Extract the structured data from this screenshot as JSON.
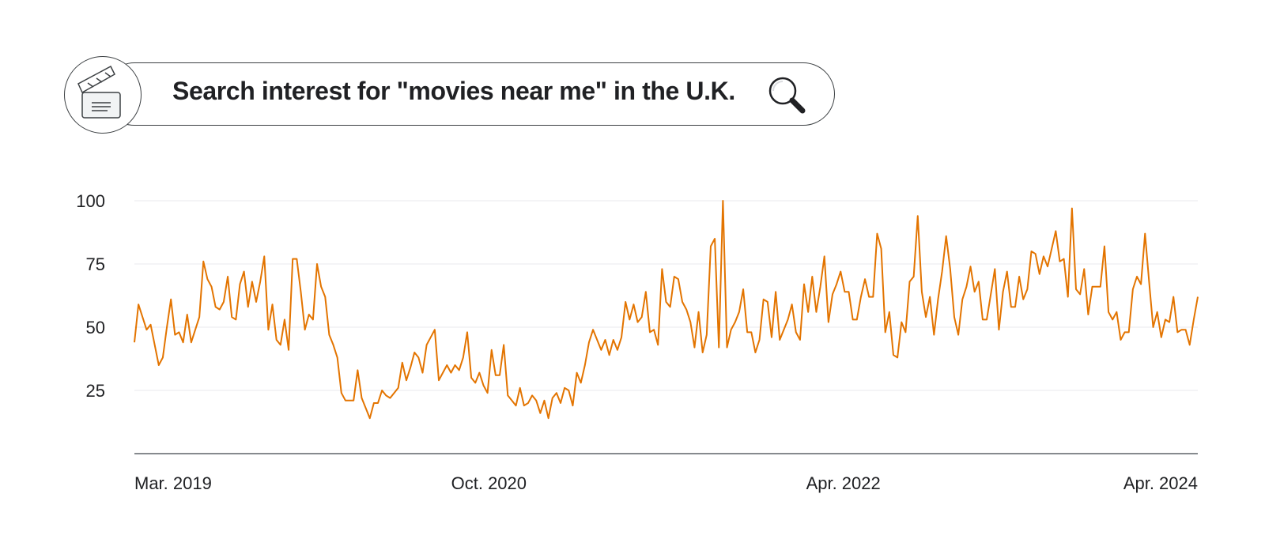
{
  "header": {
    "title": "Search interest for \"movies near me\" in the U.K.",
    "left_icon": "clapperboard-icon",
    "right_icon": "magnifier-icon"
  },
  "chart_data": {
    "type": "line",
    "title": "Search interest for \"movies near me\" in the U.K.",
    "xlabel": "",
    "ylabel": "",
    "ylim": [
      0,
      100
    ],
    "yticks": [
      25,
      50,
      75,
      100
    ],
    "xticks": [
      "Mar. 2019",
      "Oct. 2020",
      "Apr. 2022",
      "Apr. 2024"
    ],
    "grid": true,
    "line_color": "#e37400",
    "series": [
      {
        "values": [
          44,
          59,
          54,
          49,
          51,
          43,
          35,
          38,
          50,
          61,
          47,
          48,
          44,
          55,
          44,
          49,
          54,
          76,
          69,
          66,
          58,
          57,
          60,
          70,
          54,
          53,
          67,
          72,
          58,
          68,
          60,
          68,
          78,
          49,
          59,
          45,
          43,
          53,
          41,
          77,
          77,
          64,
          49,
          55,
          53,
          75,
          66,
          62,
          47,
          43,
          38,
          24,
          21,
          21,
          21,
          33,
          22,
          18,
          14,
          20,
          20,
          25,
          23,
          22,
          24,
          26,
          36,
          29,
          34,
          40,
          38,
          32,
          43,
          46,
          49,
          29,
          32,
          35,
          32,
          35,
          33,
          38,
          48,
          30,
          28,
          32,
          27,
          24,
          41,
          31,
          31,
          43,
          23,
          21,
          19,
          26,
          19,
          20,
          23,
          21,
          16,
          21,
          14,
          22,
          24,
          20,
          26,
          25,
          19,
          32,
          28,
          35,
          44,
          49,
          45,
          41,
          45,
          39,
          45,
          41,
          46,
          60,
          53,
          59,
          52,
          54,
          64,
          48,
          49,
          43,
          73,
          60,
          58,
          70,
          69,
          60,
          57,
          52,
          42,
          56,
          40,
          47,
          82,
          85,
          42,
          100,
          42,
          49,
          52,
          56,
          65,
          48,
          48,
          40,
          45,
          61,
          60,
          46,
          64,
          45,
          49,
          53,
          59,
          48,
          45,
          67,
          56,
          70,
          56,
          66,
          78,
          52,
          63,
          67,
          72,
          64,
          64,
          53,
          53,
          62,
          69,
          62,
          62,
          87,
          81,
          48,
          56,
          39,
          38,
          52,
          48,
          68,
          70,
          94,
          64,
          54,
          62,
          47,
          61,
          72,
          86,
          73,
          54,
          47,
          61,
          66,
          74,
          64,
          68,
          53,
          53,
          63,
          73,
          49,
          64,
          72,
          58,
          58,
          70,
          61,
          65,
          80,
          79,
          71,
          78,
          74,
          81,
          88,
          76,
          77,
          62,
          97,
          65,
          63,
          73,
          55,
          66,
          66,
          66,
          82,
          56,
          53,
          56,
          45,
          48,
          48,
          65,
          70,
          67,
          87,
          68,
          50,
          56,
          46,
          53,
          52,
          62,
          48,
          49,
          49,
          43,
          53,
          62
        ]
      }
    ]
  }
}
